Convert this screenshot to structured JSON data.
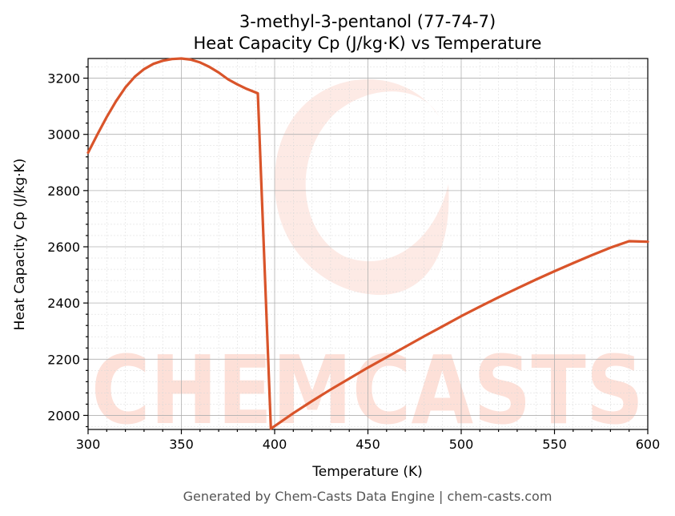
{
  "chart_data": {
    "type": "line",
    "title": "3-methyl-3-pentanol (77-74-7)",
    "subtitle": "Heat Capacity Cp (J/kg·K) vs Temperature",
    "xlabel": "Temperature (K)",
    "ylabel": "Heat Capacity Cp (J/kg·K)",
    "xlim": [
      300,
      600
    ],
    "ylim": [
      1950,
      3270
    ],
    "xticks": [
      300,
      350,
      400,
      450,
      500,
      550,
      600
    ],
    "yticks": [
      2000,
      2200,
      2400,
      2600,
      2800,
      3000,
      3200
    ],
    "grid": true,
    "series": [
      {
        "color": "#d9542a",
        "x": [
          300,
          305,
          310,
          315,
          320,
          325,
          330,
          335,
          340,
          345,
          350,
          355,
          360,
          365,
          370,
          375,
          380,
          385,
          391,
          398,
          400,
          410,
          420,
          430,
          440,
          450,
          460,
          470,
          480,
          490,
          500,
          510,
          520,
          530,
          540,
          550,
          560,
          570,
          580,
          590,
          600
        ],
        "y": [
          2935,
          3000,
          3062,
          3118,
          3167,
          3205,
          3232,
          3251,
          3262,
          3268,
          3270,
          3266,
          3256,
          3240,
          3220,
          3196,
          3178,
          3162,
          3146,
          1953,
          1962,
          2008,
          2051,
          2092,
          2131,
          2170,
          2207,
          2244,
          2281,
          2317,
          2353,
          2387,
          2420,
          2452,
          2483,
          2513,
          2542,
          2570,
          2597,
          2620,
          2618
        ]
      }
    ]
  },
  "watermark": {
    "text": "CHEMCASTS"
  },
  "footer": "Generated by Chem-Casts Data Engine | chem-casts.com"
}
